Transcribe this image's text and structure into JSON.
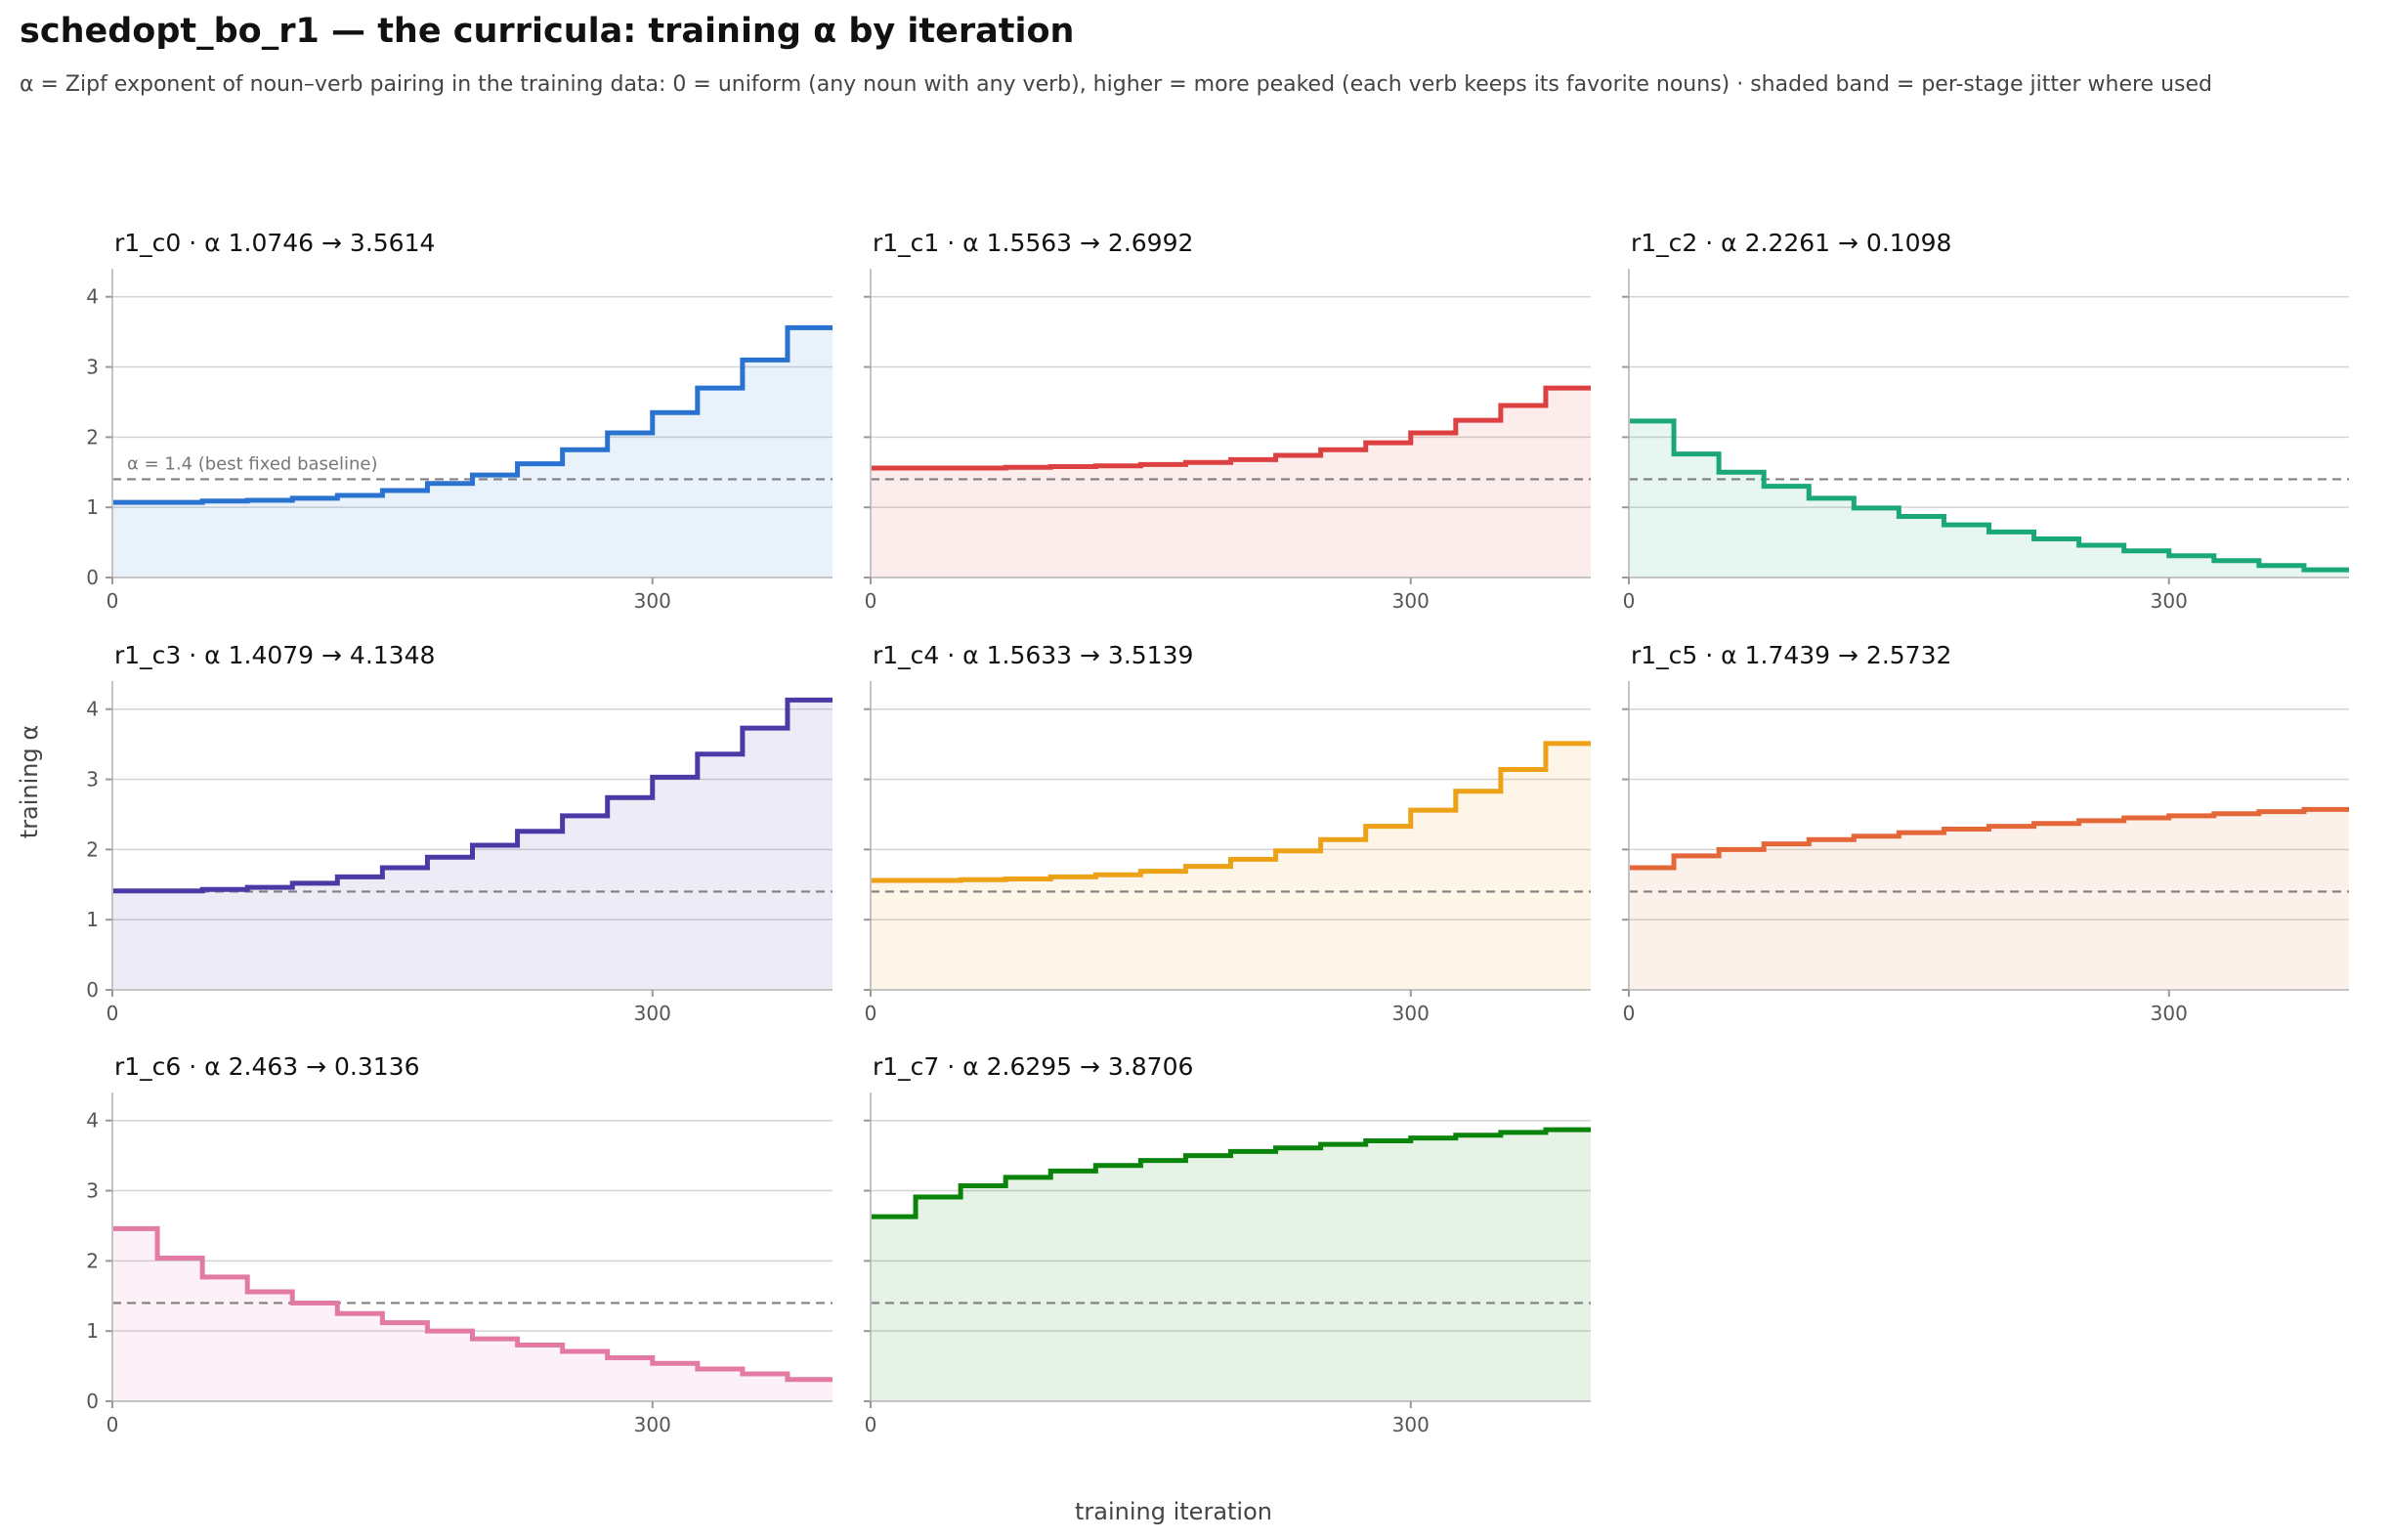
{
  "header": {
    "title": "schedopt_bo_r1 — the curricula: training α by iteration",
    "subtitle": "α = Zipf exponent of noun–verb pairing in the training data: 0 = uniform (any noun with any verb), higher = more peaked (each verb keeps its favorite nouns) · shaded band = per-stage jitter where used"
  },
  "chart_data": {
    "type": "line",
    "step": true,
    "xlabel": "training iteration",
    "ylabel": "training α",
    "xlim": [
      0,
      400
    ],
    "ylim": [
      0,
      4.4
    ],
    "x_ticks": [
      0,
      300
    ],
    "y_ticks": [
      0,
      1,
      2,
      3,
      4
    ],
    "grid": "horizontal",
    "baseline": {
      "value": 1.4,
      "label": "α = 1.4 (best fixed baseline)"
    },
    "separator": "·",
    "arrow": "→",
    "alpha_symbol": "α",
    "stage_edges": [
      0,
      25,
      50,
      75,
      100,
      125,
      150,
      175,
      200,
      225,
      250,
      275,
      300,
      325,
      350,
      375,
      400
    ],
    "panels": [
      {
        "name": "r1_c0",
        "start": "1.0746",
        "end": "3.5614",
        "color": "#2a72cf",
        "values": [
          1.07,
          1.07,
          1.09,
          1.1,
          1.13,
          1.17,
          1.24,
          1.34,
          1.46,
          1.62,
          1.82,
          2.06,
          2.35,
          2.7,
          3.1,
          3.56
        ]
      },
      {
        "name": "r1_c1",
        "start": "1.5563",
        "end": "2.6992",
        "color": "#dd4040",
        "values": [
          1.56,
          1.56,
          1.56,
          1.57,
          1.58,
          1.59,
          1.61,
          1.64,
          1.68,
          1.74,
          1.82,
          1.92,
          2.06,
          2.24,
          2.45,
          2.7
        ]
      },
      {
        "name": "r1_c2",
        "start": "2.2261",
        "end": "0.1098",
        "color": "#1aa876",
        "values": [
          2.23,
          1.76,
          1.5,
          1.3,
          1.13,
          0.99,
          0.87,
          0.75,
          0.65,
          0.55,
          0.46,
          0.38,
          0.31,
          0.24,
          0.17,
          0.11
        ]
      },
      {
        "name": "r1_c3",
        "start": "1.4079",
        "end": "4.1348",
        "color": "#4b3aa6",
        "values": [
          1.41,
          1.41,
          1.43,
          1.46,
          1.52,
          1.61,
          1.74,
          1.89,
          2.06,
          2.26,
          2.48,
          2.74,
          3.03,
          3.36,
          3.73,
          4.13
        ]
      },
      {
        "name": "r1_c4",
        "start": "1.5633",
        "end": "3.5139",
        "color": "#eca116",
        "values": [
          1.56,
          1.56,
          1.57,
          1.58,
          1.61,
          1.64,
          1.69,
          1.76,
          1.86,
          1.98,
          2.14,
          2.33,
          2.56,
          2.83,
          3.14,
          3.51
        ]
      },
      {
        "name": "r1_c5",
        "start": "1.7439",
        "end": "2.5732",
        "color": "#e4673a",
        "values": [
          1.74,
          1.91,
          2.0,
          2.08,
          2.14,
          2.19,
          2.24,
          2.29,
          2.33,
          2.37,
          2.41,
          2.45,
          2.48,
          2.51,
          2.54,
          2.57
        ]
      },
      {
        "name": "r1_c6",
        "start": "2.463",
        "end": "0.3136",
        "color": "#e27aa3",
        "values": [
          2.46,
          2.04,
          1.77,
          1.56,
          1.4,
          1.25,
          1.12,
          1.0,
          0.89,
          0.8,
          0.71,
          0.62,
          0.54,
          0.46,
          0.39,
          0.31
        ]
      },
      {
        "name": "r1_c7",
        "start": "2.6295",
        "end": "3.8706",
        "color": "#0a840a",
        "values": [
          2.63,
          2.91,
          3.07,
          3.19,
          3.28,
          3.36,
          3.43,
          3.5,
          3.56,
          3.61,
          3.66,
          3.71,
          3.75,
          3.79,
          3.83,
          3.87
        ]
      }
    ]
  }
}
